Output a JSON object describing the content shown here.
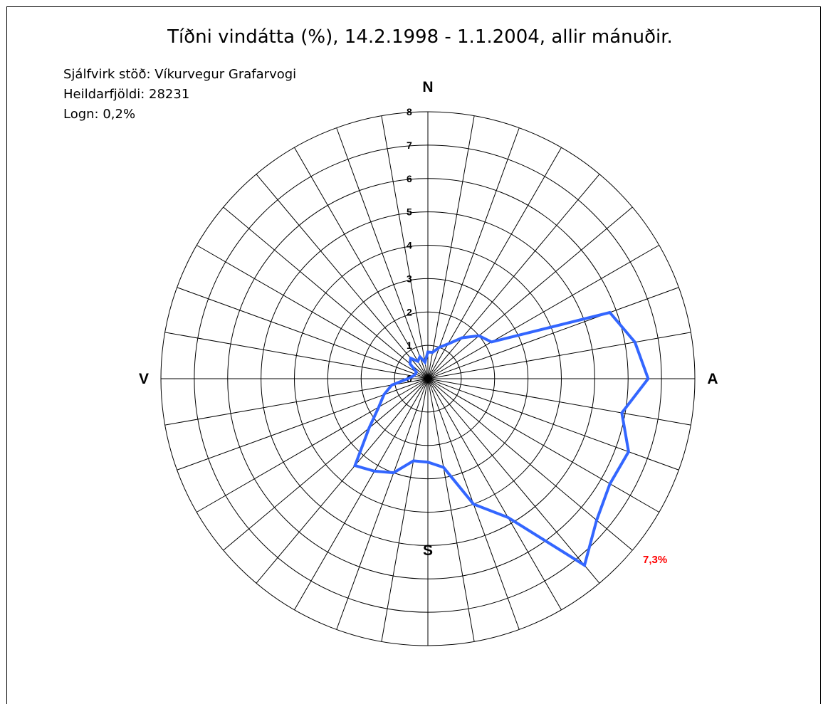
{
  "chart_data": {
    "type": "polar-line",
    "title": "Tíðni vindátta (%), 14.2.1998 - 1.1.2004, allir mánuðir.",
    "info": {
      "station": "Sjálfvirk stöð: Víkurvegur Grafarvogi",
      "total": "Heildarfjöldi: 28231",
      "calm": "Logn: 0,2%"
    },
    "compass": {
      "north": "N",
      "east": "A",
      "south": "S",
      "west": "V"
    },
    "rlim": [
      0,
      8
    ],
    "radial_ticks": [
      "0",
      "1",
      "2",
      "3",
      "4",
      "5",
      "6",
      "7",
      "8"
    ],
    "direction_count": 36,
    "theta_unit": "degrees clockwise from north",
    "grid": true,
    "series": [
      {
        "color": "#3366ff",
        "theta": [
          0,
          10,
          20,
          30,
          40,
          50,
          60,
          70,
          80,
          90,
          100,
          110,
          120,
          130,
          140,
          150,
          160,
          170,
          180,
          190,
          200,
          210,
          220,
          230,
          240,
          250,
          260,
          270,
          280,
          290,
          300,
          310,
          320,
          330,
          340,
          350
        ],
        "values": [
          0.8,
          0.8,
          1.0,
          1.2,
          1.6,
          2.0,
          2.2,
          5.8,
          6.3,
          6.6,
          5.9,
          6.4,
          6.3,
          6.6,
          7.3,
          4.8,
          4.0,
          2.7,
          2.5,
          2.5,
          3.0,
          3.2,
          3.4,
          2.3,
          1.7,
          1.4,
          1.1,
          0.6,
          0.45,
          0.4,
          0.4,
          0.7,
          0.8,
          0.6,
          0.7,
          0.5
        ]
      }
    ],
    "max_label": {
      "text": "7,3%",
      "color": "#ff0000",
      "theta": 140
    }
  }
}
